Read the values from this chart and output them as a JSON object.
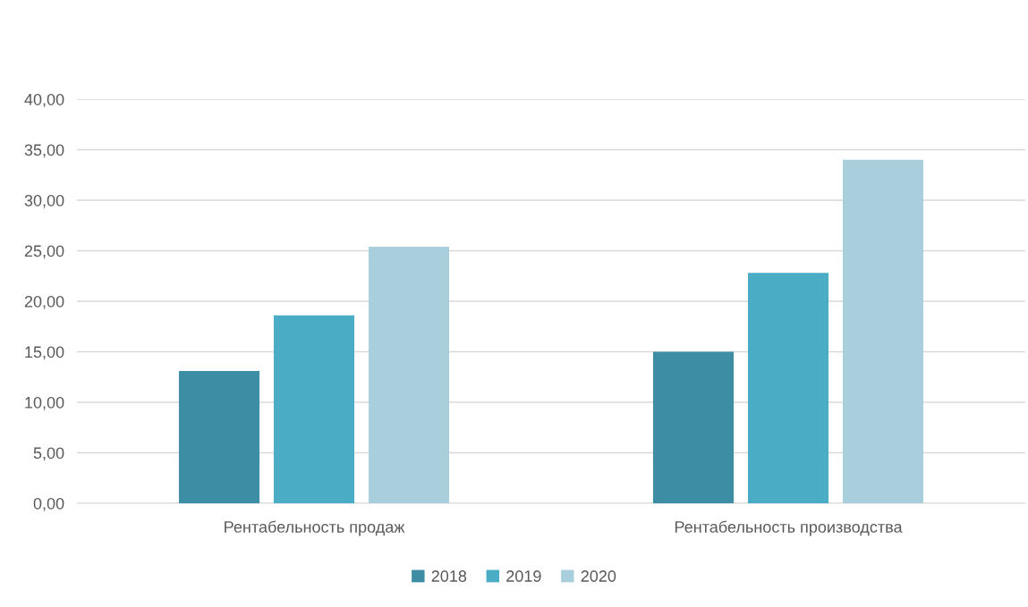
{
  "chart_data": {
    "type": "bar",
    "categories": [
      "Рентабельность продаж",
      "Рентабельность производства"
    ],
    "series": [
      {
        "name": "2018",
        "color": "#3d8ea5",
        "values": [
          13.1,
          15.0
        ]
      },
      {
        "name": "2019",
        "color": "#4bacc6",
        "values": [
          18.6,
          22.8
        ]
      },
      {
        "name": "2020",
        "color": "#a9cfdc",
        "values": [
          25.4,
          34.0
        ]
      }
    ],
    "ylim": [
      0,
      40
    ],
    "yticks": [
      {
        "value": 0,
        "label": "0,00"
      },
      {
        "value": 5,
        "label": "5,00"
      },
      {
        "value": 10,
        "label": "10,00"
      },
      {
        "value": 15,
        "label": "15,00"
      },
      {
        "value": 20,
        "label": "20,00"
      },
      {
        "value": 25,
        "label": "25,00"
      },
      {
        "value": 30,
        "label": "30,00"
      },
      {
        "value": 35,
        "label": "35,00"
      },
      {
        "value": 40,
        "label": "40,00"
      }
    ],
    "grid": "y",
    "legend": "bottom"
  }
}
